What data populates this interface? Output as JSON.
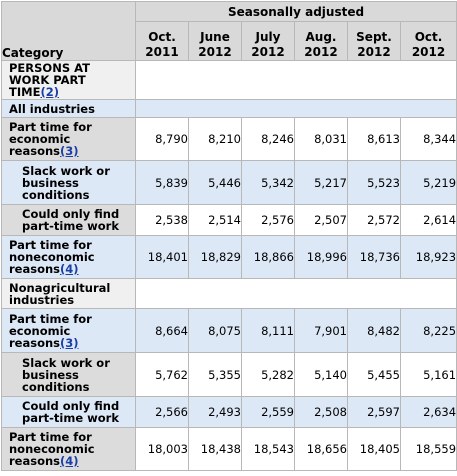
{
  "header": {
    "category_label": "Category",
    "group_label": "Seasonally adjusted",
    "columns": [
      {
        "line1": "Oct.",
        "line2": "2011"
      },
      {
        "line1": "June",
        "line2": "2012"
      },
      {
        "line1": "July",
        "line2": "2012"
      },
      {
        "line1": "Aug.",
        "line2": "2012"
      },
      {
        "line1": "Sept.",
        "line2": "2012"
      },
      {
        "line1": "Oct.",
        "line2": "2012"
      }
    ]
  },
  "section": {
    "title": "PERSONS AT WORK PART TIME",
    "footnote": "(2)"
  },
  "all_industries": {
    "label": "All industries",
    "rows": [
      {
        "label": "Part time for economic reasons",
        "footnote": "(3)",
        "values": [
          "8,790",
          "8,210",
          "8,246",
          "8,031",
          "8,613",
          "8,344"
        ]
      },
      {
        "label": "Slack work or business conditions",
        "values": [
          "5,839",
          "5,446",
          "5,342",
          "5,217",
          "5,523",
          "5,219"
        ]
      },
      {
        "label": "Could only find part-time work",
        "values": [
          "2,538",
          "2,514",
          "2,576",
          "2,507",
          "2,572",
          "2,614"
        ]
      },
      {
        "label": "Part time for noneconomic reasons",
        "footnote": "(4)",
        "values": [
          "18,401",
          "18,829",
          "18,866",
          "18,996",
          "18,736",
          "18,923"
        ]
      }
    ]
  },
  "nonagricultural": {
    "label": "Nonagricultural industries",
    "rows": [
      {
        "label": "Part time for economic reasons",
        "footnote": "(3)",
        "values": [
          "8,664",
          "8,075",
          "8,111",
          "7,901",
          "8,482",
          "8,225"
        ]
      },
      {
        "label": "Slack work or business conditions",
        "values": [
          "5,762",
          "5,355",
          "5,282",
          "5,140",
          "5,455",
          "5,161"
        ]
      },
      {
        "label": "Could only find part-time work",
        "values": [
          "2,566",
          "2,493",
          "2,559",
          "2,508",
          "2,597",
          "2,634"
        ]
      },
      {
        "label": "Part time for noneconomic reasons",
        "footnote": "(4)",
        "values": [
          "18,003",
          "18,438",
          "18,543",
          "18,656",
          "18,405",
          "18,559"
        ]
      }
    ]
  }
}
